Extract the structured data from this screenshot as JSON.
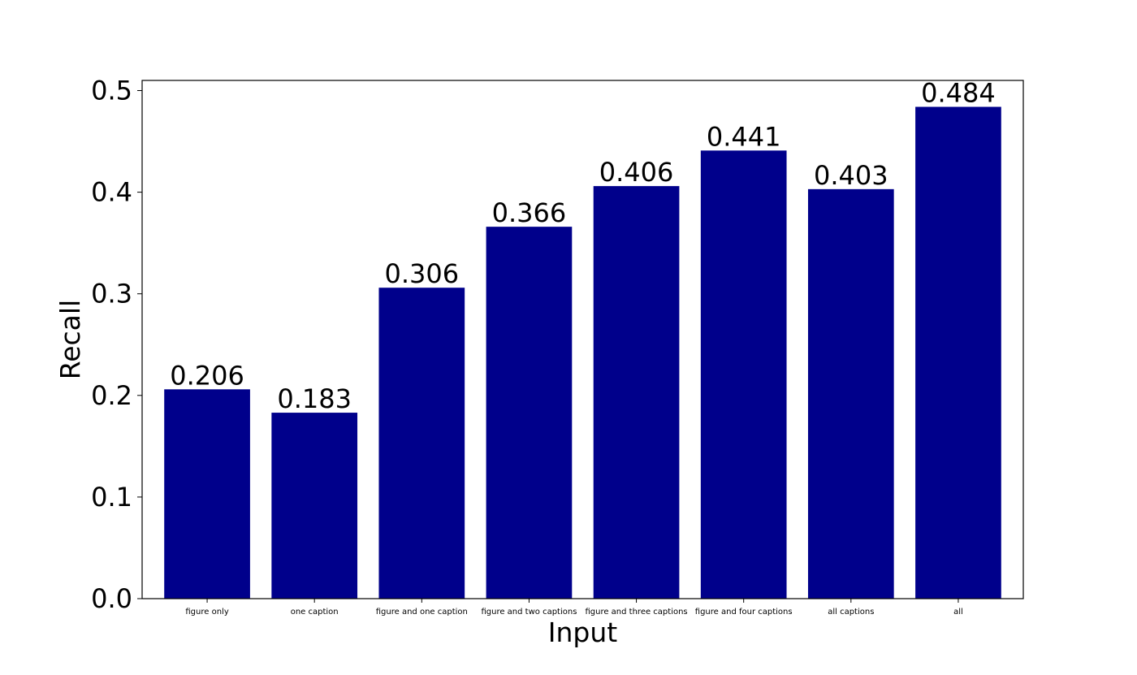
{
  "chart_data": {
    "type": "bar",
    "title": "",
    "xlabel": "Input",
    "ylabel": "Recall",
    "categories": [
      "figure only",
      "one caption",
      "figure and one caption",
      "figure and two captions",
      "figure and three captions",
      "figure and four captions",
      "all captions",
      "all"
    ],
    "values": [
      0.206,
      0.183,
      0.306,
      0.366,
      0.406,
      0.441,
      0.403,
      0.484
    ],
    "value_labels": [
      "0.206",
      "0.183",
      "0.306",
      "0.366",
      "0.406",
      "0.441",
      "0.403",
      "0.484"
    ],
    "ylim": [
      0,
      0.51
    ],
    "yticks": [
      0.0,
      0.1,
      0.2,
      0.3,
      0.4,
      0.5
    ],
    "ytick_labels": [
      "0.0",
      "0.1",
      "0.2",
      "0.3",
      "0.4",
      "0.5"
    ],
    "bar_color": "#00008b",
    "grid": false,
    "legend": "none"
  }
}
